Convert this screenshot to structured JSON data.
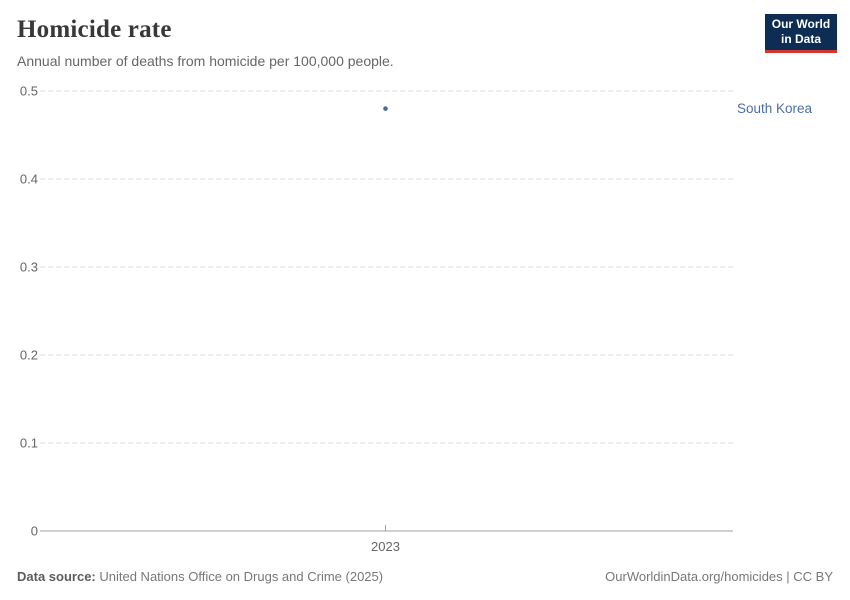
{
  "header": {
    "title": "Homicide rate",
    "subtitle": "Annual number of deaths from homicide per 100,000 people."
  },
  "logo": {
    "line1": "Our World",
    "line2": "in Data",
    "bg_color": "#0d2d55",
    "accent_color": "#d2352c"
  },
  "chart_data": {
    "type": "scatter",
    "title": "Homicide rate",
    "subtitle": "Annual number of deaths from homicide per 100,000 people.",
    "series": [
      {
        "name": "South Korea",
        "color": "#4c6a9c",
        "label_color": "#4c6fa5",
        "points": [
          {
            "x": 2023,
            "y": 0.48
          }
        ]
      }
    ],
    "xticks": [
      "2023"
    ],
    "yticks": [
      0,
      0.1,
      0.2,
      0.3,
      0.4,
      0.5
    ],
    "ylim": [
      0,
      0.5
    ],
    "grid": "horizontal-dashed",
    "legend_position": "right-of-point",
    "grid_color": "#dddddd",
    "axis_color": "#a0a0a0",
    "tick_label_color": "#666666"
  },
  "footer": {
    "datasource_label": "Data source:",
    "datasource_text": " United Nations Office on Drugs and Crime (2025)",
    "note": "OurWorldinData.org/homicides | CC BY"
  }
}
